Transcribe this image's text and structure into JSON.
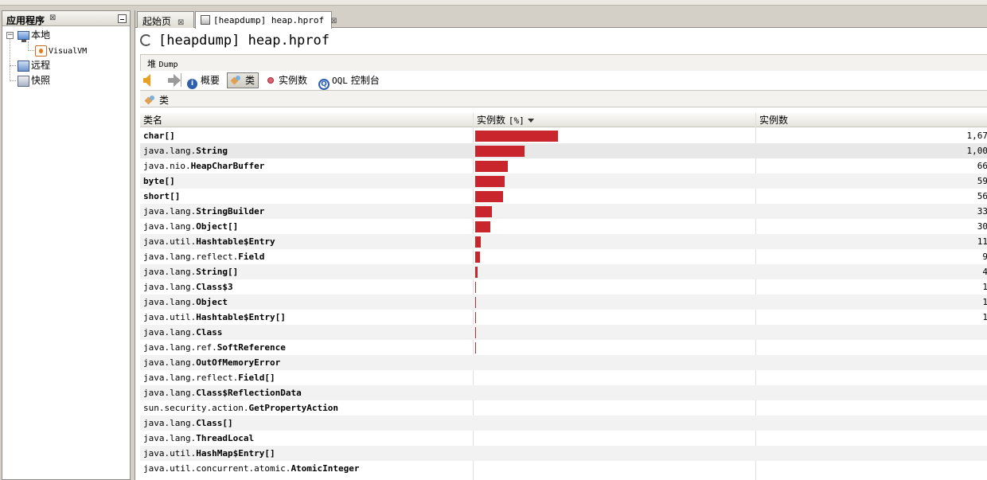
{
  "left_panel": {
    "title": "应用程序",
    "close_glyph": "⊠",
    "tree": {
      "local": "本地",
      "visualvm": "VisualVM",
      "remote": "远程",
      "snapshots": "快照"
    }
  },
  "tabs": [
    {
      "label": "起始页",
      "close_glyph": "⊠"
    },
    {
      "label": "[heapdump] heap.hprof",
      "close_glyph": "⊠"
    }
  ],
  "page_title": "[heapdump] heap.hprof",
  "heap_section": {
    "prefix": "堆",
    "suffix": "Dump"
  },
  "toolbar": {
    "summary": "概要",
    "classes": "类",
    "instances": "实例数",
    "oql_prefix": "OQL",
    "oql_suffix": "控制台"
  },
  "sub_header": "类",
  "table": {
    "col_name": "类名",
    "col_instances_pct_prefix": "实例数",
    "col_instances_pct_suffix": "[%]",
    "col_instances": "实例数",
    "bar_color": "#c8262c",
    "rows": [
      {
        "pkg": "",
        "cls": "char[]",
        "count": "1,67",
        "pct": 16.6
      },
      {
        "pkg": "java.lang.",
        "cls": "String",
        "count": "1,00",
        "pct": 9.9
      },
      {
        "pkg": "java.nio.",
        "cls": "HeapCharBuffer",
        "count": "66",
        "pct": 6.6
      },
      {
        "pkg": "",
        "cls": "byte[]",
        "count": "59",
        "pct": 5.9
      },
      {
        "pkg": "",
        "cls": "short[]",
        "count": "56",
        "pct": 5.6
      },
      {
        "pkg": "java.lang.",
        "cls": "StringBuilder",
        "count": "33",
        "pct": 3.3
      },
      {
        "pkg": "java.lang.",
        "cls": "Object[]",
        "count": "30",
        "pct": 3.0
      },
      {
        "pkg": "java.util.",
        "cls": "Hashtable$Entry",
        "count": "11",
        "pct": 1.1
      },
      {
        "pkg": "java.lang.reflect.",
        "cls": "Field",
        "count": "9",
        "pct": 0.9
      },
      {
        "pkg": "java.lang.",
        "cls": "String[]",
        "count": "4",
        "pct": 0.4
      },
      {
        "pkg": "java.lang.",
        "cls": "Class$3",
        "count": "1",
        "pct": 0.15
      },
      {
        "pkg": "java.lang.",
        "cls": "Object",
        "count": "1",
        "pct": 0.15
      },
      {
        "pkg": "java.util.",
        "cls": "Hashtable$Entry[]",
        "count": "1",
        "pct": 0.15
      },
      {
        "pkg": "java.lang.",
        "cls": "Class",
        "count": "",
        "pct": 0.15
      },
      {
        "pkg": "java.lang.ref.",
        "cls": "SoftReference",
        "count": "",
        "pct": 0.15
      },
      {
        "pkg": "java.lang.",
        "cls": "OutOfMemoryError",
        "count": "",
        "pct": 0
      },
      {
        "pkg": "java.lang.reflect.",
        "cls": "Field[]",
        "count": "",
        "pct": 0
      },
      {
        "pkg": "java.lang.",
        "cls": "Class$ReflectionData",
        "count": "",
        "pct": 0
      },
      {
        "pkg": "sun.security.action.",
        "cls": "GetPropertyAction",
        "count": "",
        "pct": 0
      },
      {
        "pkg": "java.lang.",
        "cls": "Class[]",
        "count": "",
        "pct": 0
      },
      {
        "pkg": "java.lang.",
        "cls": "ThreadLocal",
        "count": "",
        "pct": 0
      },
      {
        "pkg": "java.util.",
        "cls": "HashMap$Entry[]",
        "count": "",
        "pct": 0
      },
      {
        "pkg": "java.util.concurrent.atomic.",
        "cls": "AtomicInteger",
        "count": "",
        "pct": 0
      }
    ]
  }
}
